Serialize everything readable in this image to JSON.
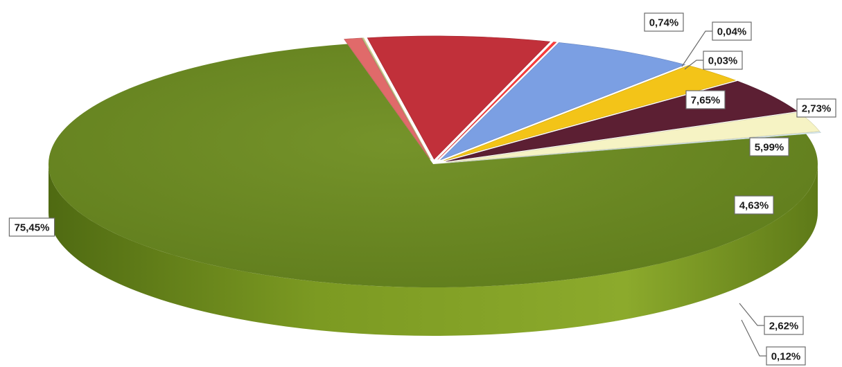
{
  "chart_data": {
    "type": "pie",
    "variant": "3d-exploded",
    "legend": "none",
    "slices": [
      {
        "value": 75.45,
        "label": "75,45%",
        "color": "#6b8a1e"
      },
      {
        "value": 0.74,
        "label": "0,74%",
        "color": "#e06a6a"
      },
      {
        "value": 0.04,
        "label": "0,04%",
        "color": "#b7c98a"
      },
      {
        "value": 0.03,
        "label": "0,03%",
        "color": "#f2e6a0"
      },
      {
        "value": 7.65,
        "label": "7,65%",
        "color": "#c1303a"
      },
      {
        "value": 0.12,
        "label": "",
        "color": "#ff3b3b"
      },
      {
        "value": 5.99,
        "label": "5,99%",
        "color": "#7b9fe3"
      },
      {
        "value": 2.73,
        "label": "2,73%",
        "color": "#f3c418"
      },
      {
        "value": 4.63,
        "label": "4,63%",
        "color": "#5c1f33"
      },
      {
        "value": 2.62,
        "label": "2,62%",
        "color": "#f6f3c4"
      },
      {
        "value": 0.12,
        "label": "0,12%",
        "color": "#e3f6fb"
      }
    ]
  }
}
